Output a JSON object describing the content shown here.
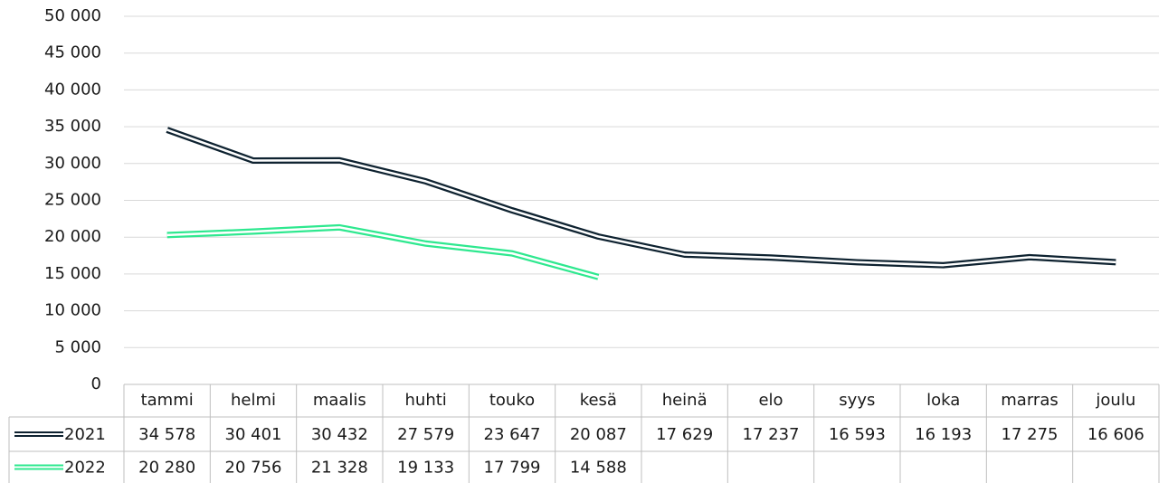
{
  "chart_data": {
    "type": "line",
    "categories": [
      "tammi",
      "helmi",
      "maalis",
      "huhti",
      "touko",
      "kesä",
      "heinä",
      "elo",
      "syys",
      "loka",
      "marras",
      "joulu"
    ],
    "series": [
      {
        "name": "2021",
        "color": "#0e2230",
        "values": [
          34578,
          30401,
          30432,
          27579,
          23647,
          20087,
          17629,
          17237,
          16593,
          16193,
          17275,
          16606
        ],
        "value_labels": [
          "34 578",
          "30 401",
          "30 432",
          "27 579",
          "23 647",
          "20 087",
          "17 629",
          "17 237",
          "16 593",
          "16 193",
          "17 275",
          "16 606"
        ]
      },
      {
        "name": "2022",
        "color": "#2ee88f",
        "values": [
          20280,
          20756,
          21328,
          19133,
          17799,
          14588,
          null,
          null,
          null,
          null,
          null,
          null
        ],
        "value_labels": [
          "20 280",
          "20 756",
          "21 328",
          "19 133",
          "17 799",
          "14 588",
          null,
          null,
          null,
          null,
          null,
          null
        ]
      }
    ],
    "ylim": [
      0,
      50000
    ],
    "yticks": [
      0,
      {
        "value": 5000,
        "label": "5 000"
      },
      {
        "value": 10000,
        "label": "10 000"
      },
      {
        "value": 15000,
        "label": "15 000"
      },
      {
        "value": 20000,
        "label": "20 000"
      },
      {
        "value": 25000,
        "label": "25 000"
      },
      {
        "value": 30000,
        "label": "30 000"
      },
      {
        "value": 35000,
        "label": "35 000"
      },
      {
        "value": 40000,
        "label": "40 000"
      },
      {
        "value": 45000,
        "label": "45 000"
      },
      {
        "value": 50000,
        "label": "50 000"
      }
    ],
    "grid": true
  }
}
